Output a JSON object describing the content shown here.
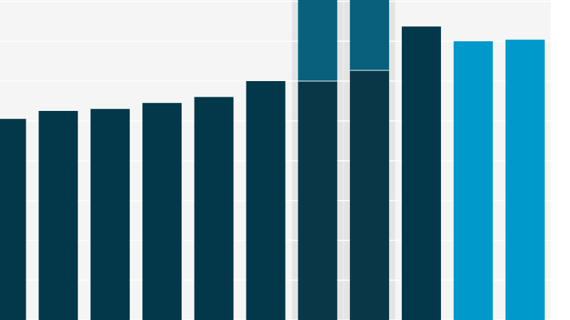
{
  "chart_data": {
    "type": "bar",
    "title": "",
    "xlabel": "",
    "ylabel": "",
    "categories": [
      "",
      "",
      "",
      "",
      "",
      "",
      "",
      "",
      "",
      "",
      ""
    ],
    "ylim": [
      0,
      100
    ],
    "grid": true,
    "legend": "none",
    "series": [
      {
        "values": [
          50.5,
          52.5,
          53,
          54.5,
          56,
          60,
          60,
          62.7,
          73.7,
          70,
          70.4
        ],
        "color": "#02384a",
        "highlight_color": "#0a3747"
      },
      {
        "values": [
          0,
          0,
          0,
          0,
          0,
          0,
          21,
          18.5,
          0,
          0,
          0
        ],
        "color": "#08607c"
      }
    ],
    "bar_colors": [
      "#02384a",
      "#02384a",
      "#02384a",
      "#02384a",
      "#02384a",
      "#02384a",
      "#0a3747",
      "#0a3747",
      "#02384a",
      "#0099cc",
      "#0099cc"
    ],
    "highlighted_categories": [
      6,
      7
    ],
    "colors": {
      "background": "#f5f5f5",
      "grid": "#ffffff",
      "highlight_band": "#e4e4e4",
      "dark": "#02384a",
      "light": "#0099cc",
      "stacked_top": "#08607c"
    }
  }
}
